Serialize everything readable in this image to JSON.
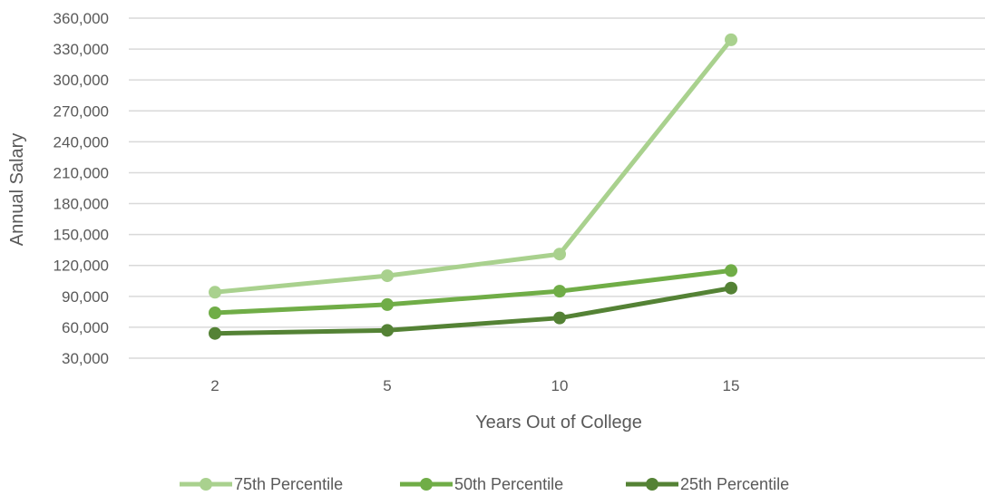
{
  "chart_data": {
    "type": "line",
    "categories": [
      "2",
      "5",
      "10",
      "15"
    ],
    "series": [
      {
        "name": "75th Percentile",
        "values": [
          94000,
          110000,
          131000,
          339000
        ],
        "color": "#a9d18e"
      },
      {
        "name": "50th Percentile",
        "values": [
          74000,
          82000,
          95000,
          115000
        ],
        "color": "#70ad47"
      },
      {
        "name": "25th Percentile",
        "values": [
          54000,
          57000,
          69000,
          98000
        ],
        "color": "#548235"
      }
    ],
    "y_ticks": [
      "30,000",
      "60,000",
      "90,000",
      "120,000",
      "150,000",
      "180,000",
      "210,000",
      "240,000",
      "270,000",
      "300,000",
      "330,000",
      "360,000"
    ],
    "ylim": [
      30000,
      360000
    ],
    "xlabel": "Years Out of College",
    "ylabel": "Annual Salary",
    "grid": true,
    "legend_position": "bottom"
  }
}
